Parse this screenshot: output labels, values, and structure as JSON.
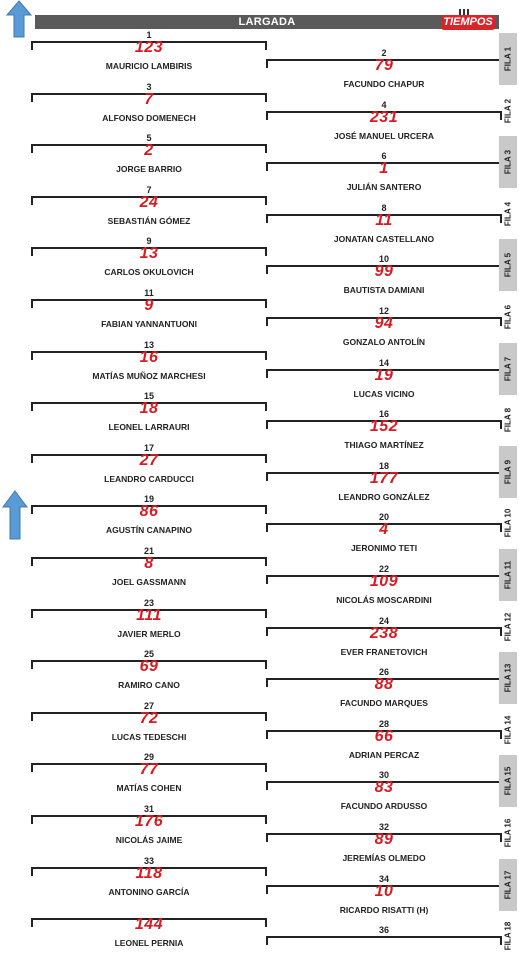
{
  "header": {
    "title": "LARGADA",
    "logo_text": "TIEMPOS"
  },
  "icons": {
    "arrow": "up-arrow-icon",
    "flag": "checkered-flag-icon"
  },
  "colors": {
    "header_bg": "#5a5a5a",
    "number": "#d51c24",
    "row_label_shade": "#c9c9c9",
    "arrow": "#5b9bd5"
  },
  "grid": [
    {
      "pos": "1",
      "num": "123",
      "name": "MAURICIO LAMBIRIS"
    },
    {
      "pos": "2",
      "num": "79",
      "name": "FACUNDO CHAPUR"
    },
    {
      "pos": "3",
      "num": "7",
      "name": "ALFONSO DOMENECH"
    },
    {
      "pos": "4",
      "num": "231",
      "name": "JOSÉ MANUEL URCERA"
    },
    {
      "pos": "5",
      "num": "2",
      "name": "JORGE BARRIO"
    },
    {
      "pos": "6",
      "num": "1",
      "name": "JULIÁN SANTERO"
    },
    {
      "pos": "7",
      "num": "24",
      "name": "SEBASTIÁN GÓMEZ"
    },
    {
      "pos": "8",
      "num": "11",
      "name": "JONATAN CASTELLANO"
    },
    {
      "pos": "9",
      "num": "13",
      "name": "CARLOS OKULOVICH"
    },
    {
      "pos": "10",
      "num": "99",
      "name": "BAUTISTA DAMIANI"
    },
    {
      "pos": "11",
      "num": "9",
      "name": "FABIAN YANNANTUONI"
    },
    {
      "pos": "12",
      "num": "94",
      "name": "GONZALO ANTOLÍN"
    },
    {
      "pos": "13",
      "num": "16",
      "name": "MATÍAS MUÑOZ MARCHESI"
    },
    {
      "pos": "14",
      "num": "19",
      "name": "LUCAS VICINO"
    },
    {
      "pos": "15",
      "num": "18",
      "name": "LEONEL LARRAURI"
    },
    {
      "pos": "16",
      "num": "152",
      "name": "THIAGO MARTÍNEZ"
    },
    {
      "pos": "17",
      "num": "27",
      "name": "LEANDRO CARDUCCI"
    },
    {
      "pos": "18",
      "num": "177",
      "name": "LEANDRO GONZÁLEZ"
    },
    {
      "pos": "19",
      "num": "86",
      "name": "AGUSTÍN CANAPINO"
    },
    {
      "pos": "20",
      "num": "4",
      "name": "JERONIMO TETI"
    },
    {
      "pos": "21",
      "num": "8",
      "name": "JOEL GASSMANN"
    },
    {
      "pos": "22",
      "num": "109",
      "name": "NICOLÁS MOSCARDINI"
    },
    {
      "pos": "23",
      "num": "111",
      "name": "JAVIER MERLO"
    },
    {
      "pos": "24",
      "num": "238",
      "name": "EVER FRANETOVICH"
    },
    {
      "pos": "25",
      "num": "69",
      "name": "RAMIRO CANO"
    },
    {
      "pos": "26",
      "num": "88",
      "name": "FACUNDO MARQUES"
    },
    {
      "pos": "27",
      "num": "72",
      "name": "LUCAS TEDESCHI"
    },
    {
      "pos": "28",
      "num": "66",
      "name": "ADRIAN PERCAZ"
    },
    {
      "pos": "29",
      "num": "77",
      "name": "MATÍAS COHEN"
    },
    {
      "pos": "30",
      "num": "83",
      "name": "FACUNDO ARDUSSO"
    },
    {
      "pos": "31",
      "num": "176",
      "name": "NICOLÁS JAIME"
    },
    {
      "pos": "32",
      "num": "89",
      "name": "JEREMÍAS OLMEDO"
    },
    {
      "pos": "33",
      "num": "118",
      "name": "ANTONINO GARCÍA"
    },
    {
      "pos": "34",
      "num": "10",
      "name": "RICARDO RISATTI (H)"
    },
    {
      "pos": "",
      "num": "144",
      "name": "LEONEL PERNIA"
    },
    {
      "pos": "36",
      "num": "",
      "name": ""
    }
  ],
  "rows": [
    "FILA 1",
    "FILA 2",
    "FILA 3",
    "FILA 4",
    "FILA 5",
    "FILA 6",
    "FILA 7",
    "FILA 8",
    "FILA 9",
    "FILA 10",
    "FILA 11",
    "FILA 12",
    "FILA 13",
    "FILA 14",
    "FILA 15",
    "FILA 16",
    "FILA 17",
    "FILA 18"
  ]
}
